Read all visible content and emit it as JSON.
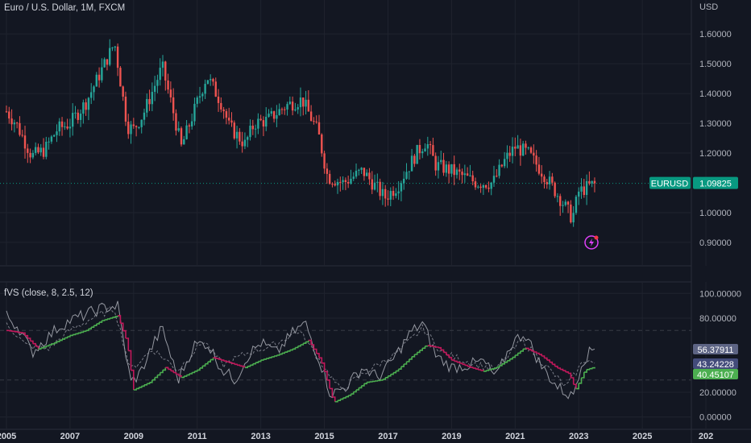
{
  "main_title": "Euro / U.S. Dollar, 1M, FXCM",
  "currency": "USD",
  "indicator_title": "fVS (close, 8, 2.5, 12)",
  "colors": {
    "background": "#131722",
    "grid": "#1f232e",
    "separator": "#2a2e39",
    "up": "#26a69a",
    "down": "#ef5350",
    "axis_text": "#b2b5be",
    "price_label": "#089981",
    "fvs_red": "#c2185b",
    "fvs_green": "#4caf50",
    "fvs_gray": "#9598a1",
    "label_gray": "#5d6484",
    "label_blue": "#434b7a",
    "label_green": "#4caf50",
    "alert_icon": "#e040fb"
  },
  "icons": {
    "alert": "lightning-bolt-icon"
  },
  "chart_data": [
    {
      "type": "candlestick",
      "title": "Euro / U.S. Dollar, 1M, FXCM",
      "symbol": "EURUSD",
      "last_price_label": "1.09825",
      "ylabel": "USD",
      "ylim": [
        0.87,
        1.66
      ],
      "yticks": [
        "1.60000",
        "1.50000",
        "1.40000",
        "1.30000",
        "1.20000",
        "1.00000",
        "0.90000"
      ],
      "xticks": [
        "2005",
        "2007",
        "2009",
        "2011",
        "2013",
        "2015",
        "2017",
        "2019",
        "2021",
        "2023",
        "2025",
        "202"
      ],
      "xlim": [
        2005.0,
        2027.1
      ],
      "anchors": [
        [
          2005.0,
          1.34
        ],
        [
          2005.3,
          1.3
        ],
        [
          2005.8,
          1.19
        ],
        [
          2006.2,
          1.21
        ],
        [
          2006.6,
          1.28
        ],
        [
          2007.0,
          1.3
        ],
        [
          2007.5,
          1.37
        ],
        [
          2008.0,
          1.48
        ],
        [
          2008.4,
          1.57
        ],
        [
          2008.8,
          1.29
        ],
        [
          2009.0,
          1.28
        ],
        [
          2009.3,
          1.33
        ],
        [
          2009.9,
          1.49
        ],
        [
          2010.2,
          1.36
        ],
        [
          2010.5,
          1.22
        ],
        [
          2010.9,
          1.34
        ],
        [
          2011.3,
          1.46
        ],
        [
          2011.8,
          1.36
        ],
        [
          2012.0,
          1.29
        ],
        [
          2012.5,
          1.23
        ],
        [
          2012.8,
          1.3
        ],
        [
          2013.2,
          1.31
        ],
        [
          2013.8,
          1.36
        ],
        [
          2014.3,
          1.38
        ],
        [
          2014.8,
          1.27
        ],
        [
          2015.1,
          1.12
        ],
        [
          2015.6,
          1.1
        ],
        [
          2016.2,
          1.14
        ],
        [
          2016.9,
          1.05
        ],
        [
          2017.3,
          1.09
        ],
        [
          2017.9,
          1.2
        ],
        [
          2018.2,
          1.24
        ],
        [
          2018.5,
          1.16
        ],
        [
          2019.0,
          1.14
        ],
        [
          2019.8,
          1.1
        ],
        [
          2020.3,
          1.1
        ],
        [
          2020.7,
          1.18
        ],
        [
          2021.0,
          1.22
        ],
        [
          2021.4,
          1.2
        ],
        [
          2021.9,
          1.13
        ],
        [
          2022.4,
          1.05
        ],
        [
          2022.8,
          0.98
        ],
        [
          2023.0,
          1.07
        ],
        [
          2023.5,
          1.09825
        ]
      ],
      "series": [
        {
          "name": "EURUSD"
        }
      ]
    },
    {
      "type": "line",
      "title": "fVS (close, 8, 2.5, 12)",
      "ylim": [
        -8,
        108
      ],
      "yticks": [
        "100.00000",
        "80.00000",
        "20.00000",
        "0.00000"
      ],
      "reference_lines": [
        70,
        30
      ],
      "value_labels": [
        "56.37911",
        "43.24228",
        "40.45107"
      ],
      "series": [
        {
          "color": "gray",
          "points": [
            [
              2005.0,
              82
            ],
            [
              2005.4,
              72
            ],
            [
              2005.8,
              52
            ],
            [
              2006.2,
              62
            ],
            [
              2006.6,
              72
            ],
            [
              2007.0,
              78
            ],
            [
              2007.5,
              83
            ],
            [
              2008.0,
              88
            ],
            [
              2008.5,
              90
            ],
            [
              2008.9,
              28
            ],
            [
              2009.2,
              35
            ],
            [
              2009.6,
              58
            ],
            [
              2009.9,
              72
            ],
            [
              2010.4,
              30
            ],
            [
              2010.9,
              58
            ],
            [
              2011.3,
              60
            ],
            [
              2011.8,
              38
            ],
            [
              2012.2,
              30
            ],
            [
              2012.6,
              50
            ],
            [
              2013.0,
              60
            ],
            [
              2013.5,
              52
            ],
            [
              2014.0,
              68
            ],
            [
              2014.4,
              76
            ],
            [
              2014.9,
              42
            ],
            [
              2015.2,
              18
            ],
            [
              2015.7,
              25
            ],
            [
              2016.2,
              40
            ],
            [
              2016.7,
              32
            ],
            [
              2017.2,
              48
            ],
            [
              2017.7,
              68
            ],
            [
              2018.1,
              76
            ],
            [
              2018.5,
              50
            ],
            [
              2019.0,
              40
            ],
            [
              2019.5,
              42
            ],
            [
              2020.0,
              45
            ],
            [
              2020.4,
              32
            ],
            [
              2020.9,
              60
            ],
            [
              2021.3,
              68
            ],
            [
              2021.8,
              42
            ],
            [
              2022.3,
              25
            ],
            [
              2022.8,
              16
            ],
            [
              2023.1,
              45
            ],
            [
              2023.5,
              56.38
            ]
          ]
        },
        {
          "color": "red-green",
          "points": [
            [
              2005.0,
              70
            ],
            [
              2005.5,
              68
            ],
            [
              2006.0,
              55
            ],
            [
              2006.5,
              60
            ],
            [
              2007.0,
              66
            ],
            [
              2007.5,
              70
            ],
            [
              2008.0,
              78
            ],
            [
              2008.5,
              82
            ],
            [
              2008.8,
              60
            ],
            [
              2009.0,
              22
            ],
            [
              2009.5,
              28
            ],
            [
              2010.0,
              40
            ],
            [
              2010.5,
              32
            ],
            [
              2011.0,
              38
            ],
            [
              2011.5,
              48
            ],
            [
              2012.0,
              44
            ],
            [
              2012.5,
              40
            ],
            [
              2013.0,
              46
            ],
            [
              2013.5,
              50
            ],
            [
              2014.0,
              55
            ],
            [
              2014.5,
              62
            ],
            [
              2014.9,
              45
            ],
            [
              2015.3,
              12
            ],
            [
              2015.8,
              18
            ],
            [
              2016.3,
              28
            ],
            [
              2016.8,
              30
            ],
            [
              2017.3,
              38
            ],
            [
              2017.8,
              50
            ],
            [
              2018.2,
              58
            ],
            [
              2018.6,
              56
            ],
            [
              2019.0,
              46
            ],
            [
              2019.6,
              40
            ],
            [
              2020.0,
              37
            ],
            [
              2020.4,
              40
            ],
            [
              2020.9,
              48
            ],
            [
              2021.3,
              56
            ],
            [
              2021.8,
              50
            ],
            [
              2022.3,
              40
            ],
            [
              2022.7,
              35
            ],
            [
              2022.9,
              22
            ],
            [
              2023.2,
              38
            ],
            [
              2023.5,
              40.45
            ]
          ]
        },
        {
          "color": "dashed",
          "points": [
            [
              2005.0,
              76
            ],
            [
              2005.6,
              58
            ],
            [
              2006.3,
              55
            ],
            [
              2007.0,
              70
            ],
            [
              2007.7,
              80
            ],
            [
              2008.4,
              88
            ],
            [
              2008.9,
              38
            ],
            [
              2009.6,
              55
            ],
            [
              2010.4,
              38
            ],
            [
              2011.2,
              62
            ],
            [
              2011.8,
              42
            ],
            [
              2012.6,
              52
            ],
            [
              2013.4,
              58
            ],
            [
              2014.2,
              70
            ],
            [
              2014.9,
              44
            ],
            [
              2015.5,
              22
            ],
            [
              2016.4,
              38
            ],
            [
              2017.3,
              52
            ],
            [
              2018.1,
              72
            ],
            [
              2018.7,
              52
            ],
            [
              2019.6,
              44
            ],
            [
              2020.4,
              38
            ],
            [
              2021.2,
              62
            ],
            [
              2021.8,
              46
            ],
            [
              2022.6,
              24
            ],
            [
              2023.2,
              47
            ],
            [
              2023.5,
              43.24
            ]
          ]
        }
      ]
    }
  ]
}
